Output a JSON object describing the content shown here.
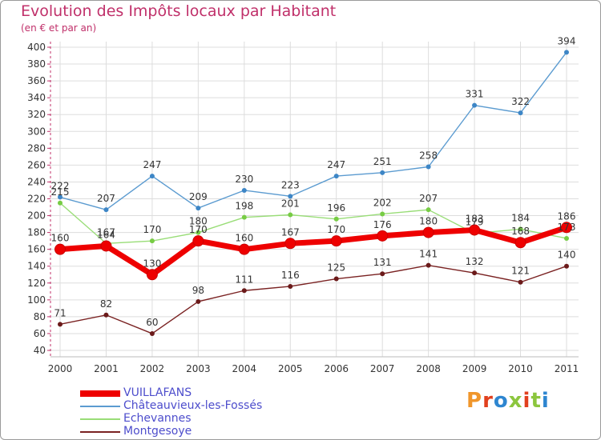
{
  "title": "Evolution des Impôts locaux par Habitant",
  "subtitle": "(en € et par an)",
  "logo": {
    "text": "Proxiti",
    "colors": [
      "#f0962b",
      "#e1401e",
      "#2e86d0",
      "#8cc63e",
      "#e1401e",
      "#8cc63e",
      "#2e86d0"
    ]
  },
  "chart_data": {
    "type": "line",
    "title": "Evolution des Impôts locaux par Habitant",
    "ylabel": "(en € et par an)",
    "xlabel": "",
    "ylim": [
      40,
      400
    ],
    "ytick_step": 20,
    "x": [
      "2000",
      "2001",
      "2002",
      "2003",
      "2004",
      "2005",
      "2006",
      "2007",
      "2008",
      "2009",
      "2010",
      "2011"
    ],
    "series": [
      {
        "name": "VUILLAFANS",
        "color": "#ee0000",
        "values": [
          160,
          164,
          130,
          170,
          160,
          167,
          170,
          176,
          180,
          183,
          168,
          186
        ],
        "labels": [
          "160",
          "164",
          "130",
          "170",
          "160",
          "167",
          "170",
          "176",
          "180",
          "183",
          "168",
          "186"
        ]
      },
      {
        "name": "Châteauvieux-les-Fossés",
        "color": "#5b9bd0",
        "values": [
          222,
          207,
          247,
          209,
          230,
          223,
          247,
          251,
          258,
          331,
          322,
          394
        ],
        "labels": [
          "222",
          "207",
          "247",
          "209",
          "230",
          "223",
          "247",
          "251",
          "258",
          "331",
          "322",
          "394"
        ]
      },
      {
        "name": "Echevannes",
        "color": "#99dd77",
        "values": [
          215,
          167,
          170,
          180,
          198,
          201,
          196,
          202,
          207,
          179,
          184,
          173
        ],
        "labels": [
          "215",
          "167",
          "170",
          "180",
          "198",
          "201",
          "196",
          "202",
          "207",
          "179",
          "184",
          "173"
        ]
      },
      {
        "name": "Montgesoye",
        "color": "#7a2222",
        "values": [
          71,
          82,
          60,
          98,
          111,
          116,
          125,
          131,
          141,
          132,
          121,
          140
        ],
        "labels": [
          "71",
          "82",
          "60",
          "98",
          "111",
          "116",
          "125",
          "131",
          "141",
          "132",
          "121",
          "140"
        ]
      }
    ]
  }
}
